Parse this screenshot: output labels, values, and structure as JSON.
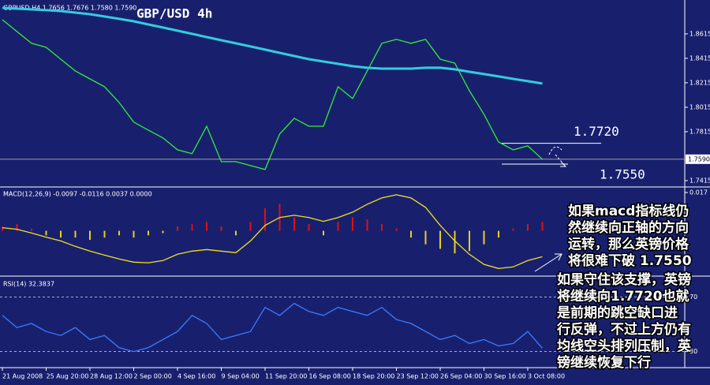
{
  "chart_data": [
    {
      "type": "line",
      "title": "GBP/USD 4h",
      "subtitle": "GBPUSD,H4 1.7656 1.7676 1.7580 1.7590",
      "ylim": [
        1.7363,
        1.8892
      ],
      "yticks": [
        1.8615,
        1.8415,
        1.8215,
        1.8015,
        1.7815,
        1.7415
      ],
      "current_price": {
        "value": 1.759,
        "label": "1.7590"
      },
      "annotations": [
        {
          "value": 1.772,
          "label": "1.7720"
        },
        {
          "value": 1.755,
          "label": "1.7550"
        }
      ],
      "series": [
        {
          "color": "#33ee33",
          "values": [
            1.8731,
            1.8634,
            1.8538,
            1.8505,
            1.8408,
            1.8312,
            1.8247,
            1.8183,
            1.8054,
            1.7893,
            1.7828,
            1.7764,
            1.7667,
            1.7635,
            1.786,
            1.757,
            1.757,
            1.7538,
            1.7506,
            1.7796,
            1.7925,
            1.786,
            1.786,
            1.8183,
            1.8086,
            1.8312,
            1.8538,
            1.857,
            1.8538,
            1.857,
            1.8408,
            1.8376,
            1.815,
            1.7957,
            1.7731,
            1.7667,
            1.7699,
            1.759
          ]
        },
        {
          "color": "#33ccdd",
          "values": [
            1.8828,
            1.8821,
            1.8815,
            1.8809,
            1.8802,
            1.8789,
            1.8776,
            1.8757,
            1.8738,
            1.8718,
            1.8692,
            1.8667,
            1.8641,
            1.8615,
            1.8589,
            1.8563,
            1.8538,
            1.8512,
            1.8486,
            1.846,
            1.8434,
            1.8408,
            1.8389,
            1.837,
            1.8351,
            1.8338,
            1.8331,
            1.8331,
            1.8331,
            1.8338,
            1.8338,
            1.8325,
            1.8305,
            1.8286,
            1.8267,
            1.8247,
            1.8228,
            1.8209
          ]
        }
      ]
    },
    {
      "type": "macd",
      "title": "MACD(12,26,9) -0.0097 -0.0116 0.0037 0.0000",
      "ylim": [
        -0.0201,
        0.0191
      ],
      "yticks": [
        0.017
      ],
      "series": [
        {
          "type": "bar",
          "up_color": "#e01010",
          "down_color": "#e8d020",
          "values": [
            0.002,
            0.003,
            0.001,
            -0.002,
            -0.003,
            -0.003,
            -0.004,
            -0.003,
            -0.002,
            -0.003,
            -0.002,
            -0.001,
            0.002,
            0.003,
            0.004,
            0.002,
            -0.002,
            0.004,
            0.01,
            0.012,
            0.006,
            0.003,
            -0.002,
            0.004,
            0.006,
            0.005,
            0.003,
            0.001,
            -0.003,
            -0.006,
            -0.008,
            -0.01,
            -0.009,
            -0.006,
            -0.003,
            0.001,
            0.003,
            0.004
          ]
        },
        {
          "type": "line",
          "color": "#f0e020",
          "values": [
            0.0014,
            0.0007,
            -0.001,
            -0.0028,
            -0.0045,
            -0.0069,
            -0.009,
            -0.0108,
            -0.0125,
            -0.0139,
            -0.0142,
            -0.0132,
            -0.0104,
            -0.009,
            -0.0083,
            -0.009,
            -0.0097,
            -0.0045,
            0.0024,
            0.0059,
            0.0069,
            0.0059,
            0.0042,
            0.0059,
            0.0083,
            0.0118,
            0.0146,
            0.016,
            0.0146,
            0.0104,
            0.0024,
            -0.0045,
            -0.0104,
            -0.0149,
            -0.0167,
            -0.016,
            -0.0132,
            -0.0115
          ]
        }
      ]
    },
    {
      "type": "line",
      "title": "RSI(14) 32.3837",
      "ylim": [
        18.2,
        84.7
      ],
      "yticks": [
        70,
        30
      ],
      "categories": [
        "21 Aug 2008",
        null,
        null,
        "25 Aug 20:00",
        null,
        null,
        "28 Aug 12:00",
        null,
        null,
        "2 Sep 00:00",
        null,
        null,
        "4 Sep 16:00",
        null,
        null,
        "9 Sep 04:00",
        null,
        null,
        "11 Sep 20:00",
        null,
        null,
        "16 Sep 08:00",
        null,
        null,
        "18 Sep 20:00",
        null,
        null,
        "23 Sep 12:00",
        null,
        null,
        "26 Sep 04:00",
        null,
        null,
        "30 Sep 16:00",
        null,
        null,
        "3 Oct 08:00",
        null
      ],
      "series": [
        {
          "color": "#3a7cff",
          "values": [
            56.5,
            47.6,
            50.6,
            44.7,
            41.8,
            47.6,
            38.8,
            41.8,
            32.9,
            30.0,
            32.9,
            38.8,
            44.7,
            56.5,
            50.6,
            38.8,
            41.8,
            44.7,
            62.4,
            56.5,
            65.3,
            59.4,
            56.5,
            62.4,
            59.4,
            56.5,
            62.4,
            53.5,
            50.6,
            44.7,
            38.8,
            41.8,
            35.9,
            38.8,
            34.1,
            35.9,
            44.7,
            32.4
          ]
        }
      ]
    }
  ],
  "notes": {
    "block1": [
      "如果macd指标线仍",
      "然继续向正轴的方向",
      "运转，那么英镑价格",
      "将很难下破 1.7550"
    ],
    "block2": [
      "如果守住该支撑，英镑",
      "将继续向1.7720也就",
      "是前期的跳空缺口进",
      "行反弹，不过上方仍有",
      "均线空头排列压制，英",
      "镑继续恢复下行"
    ]
  }
}
